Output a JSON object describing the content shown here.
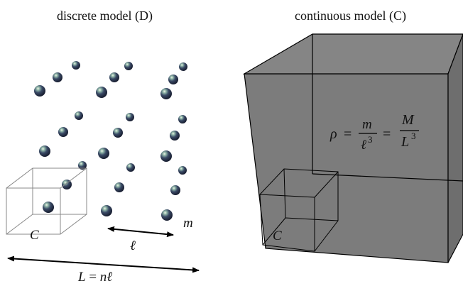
{
  "titles": {
    "discrete": "discrete model (D)",
    "continuous": "continuous model (C)"
  },
  "discrete": {
    "cell_label": "C",
    "spacing_label": "ℓ",
    "mass_label": "m",
    "length_label_var": "L",
    "length_label_eq": " = ",
    "length_label_n": "nℓ"
  },
  "continuous": {
    "cell_label": "C",
    "formula": {
      "rho": "ρ",
      "eq": "=",
      "m": "m",
      "l3_base": "ℓ",
      "exp": "3",
      "M": "M",
      "L3_base": "L"
    }
  },
  "colors": {
    "cube_fill": "#7a7a7a",
    "line": "#000000",
    "sphere_dark": "#151a2a"
  }
}
